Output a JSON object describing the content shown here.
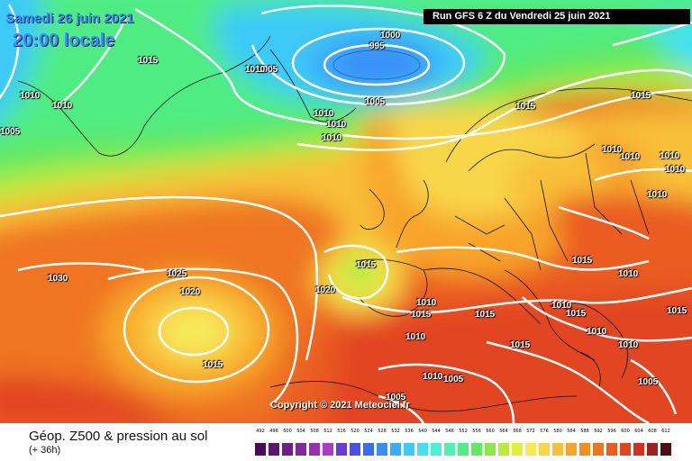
{
  "header": {
    "date": "Samedi 26 juin 2021",
    "time": "20:00 locale",
    "run": "Run GFS 6 Z du Vendredi 25 juin 2021"
  },
  "copyright": "Copyright © 2021 Meteociel.fr",
  "isobar_labels": [
    "1015",
    "1005",
    "1000",
    "995",
    "1010",
    "1010",
    "1010",
    "1005",
    "1010",
    "1010",
    "1010",
    "1005",
    "1015",
    "1015",
    "1010",
    "1010",
    "1010",
    "1010",
    "1010",
    "1030",
    "1025",
    "1020",
    "1015",
    "1020",
    "1015",
    "1010",
    "1015",
    "1015",
    "1015",
    "1015",
    "1015",
    "1010",
    "1010",
    "1010",
    "1015",
    "1010",
    "1005",
    "1005",
    "1010",
    "1005",
    "1010"
  ],
  "legend": {
    "product": "Géop. Z500 & pression au sol",
    "lead": "(+ 36h)",
    "scale": [
      {
        "v": "492",
        "c": "#4b0a5e"
      },
      {
        "v": "496",
        "c": "#5c1470"
      },
      {
        "v": "500",
        "c": "#6e1e86"
      },
      {
        "v": "504",
        "c": "#82289a"
      },
      {
        "v": "508",
        "c": "#9632ae"
      },
      {
        "v": "512",
        "c": "#aa3cc2"
      },
      {
        "v": "516",
        "c": "#6a3cd6"
      },
      {
        "v": "520",
        "c": "#4a50e6"
      },
      {
        "v": "524",
        "c": "#3a6cf2"
      },
      {
        "v": "528",
        "c": "#3a8cf8"
      },
      {
        "v": "532",
        "c": "#3aacfa"
      },
      {
        "v": "536",
        "c": "#3ccaf8"
      },
      {
        "v": "540",
        "c": "#44e0f0"
      },
      {
        "v": "544",
        "c": "#4cf0d8"
      },
      {
        "v": "548",
        "c": "#50f0b0"
      },
      {
        "v": "552",
        "c": "#50ec84"
      },
      {
        "v": "556",
        "c": "#60e860"
      },
      {
        "v": "560",
        "c": "#8ce848"
      },
      {
        "v": "564",
        "c": "#b8ec3c"
      },
      {
        "v": "568",
        "c": "#e2ee40"
      },
      {
        "v": "572",
        "c": "#f8e85a"
      },
      {
        "v": "576",
        "c": "#f8d648"
      },
      {
        "v": "580",
        "c": "#f8c038"
      },
      {
        "v": "584",
        "c": "#f8a42c"
      },
      {
        "v": "588",
        "c": "#f48c24"
      },
      {
        "v": "592",
        "c": "#ef7420"
      },
      {
        "v": "596",
        "c": "#ea5c20"
      },
      {
        "v": "600",
        "c": "#e24420"
      },
      {
        "v": "604",
        "c": "#d43020"
      },
      {
        "v": "608",
        "c": "#a02020"
      },
      {
        "v": "612",
        "c": "#501010"
      }
    ]
  }
}
